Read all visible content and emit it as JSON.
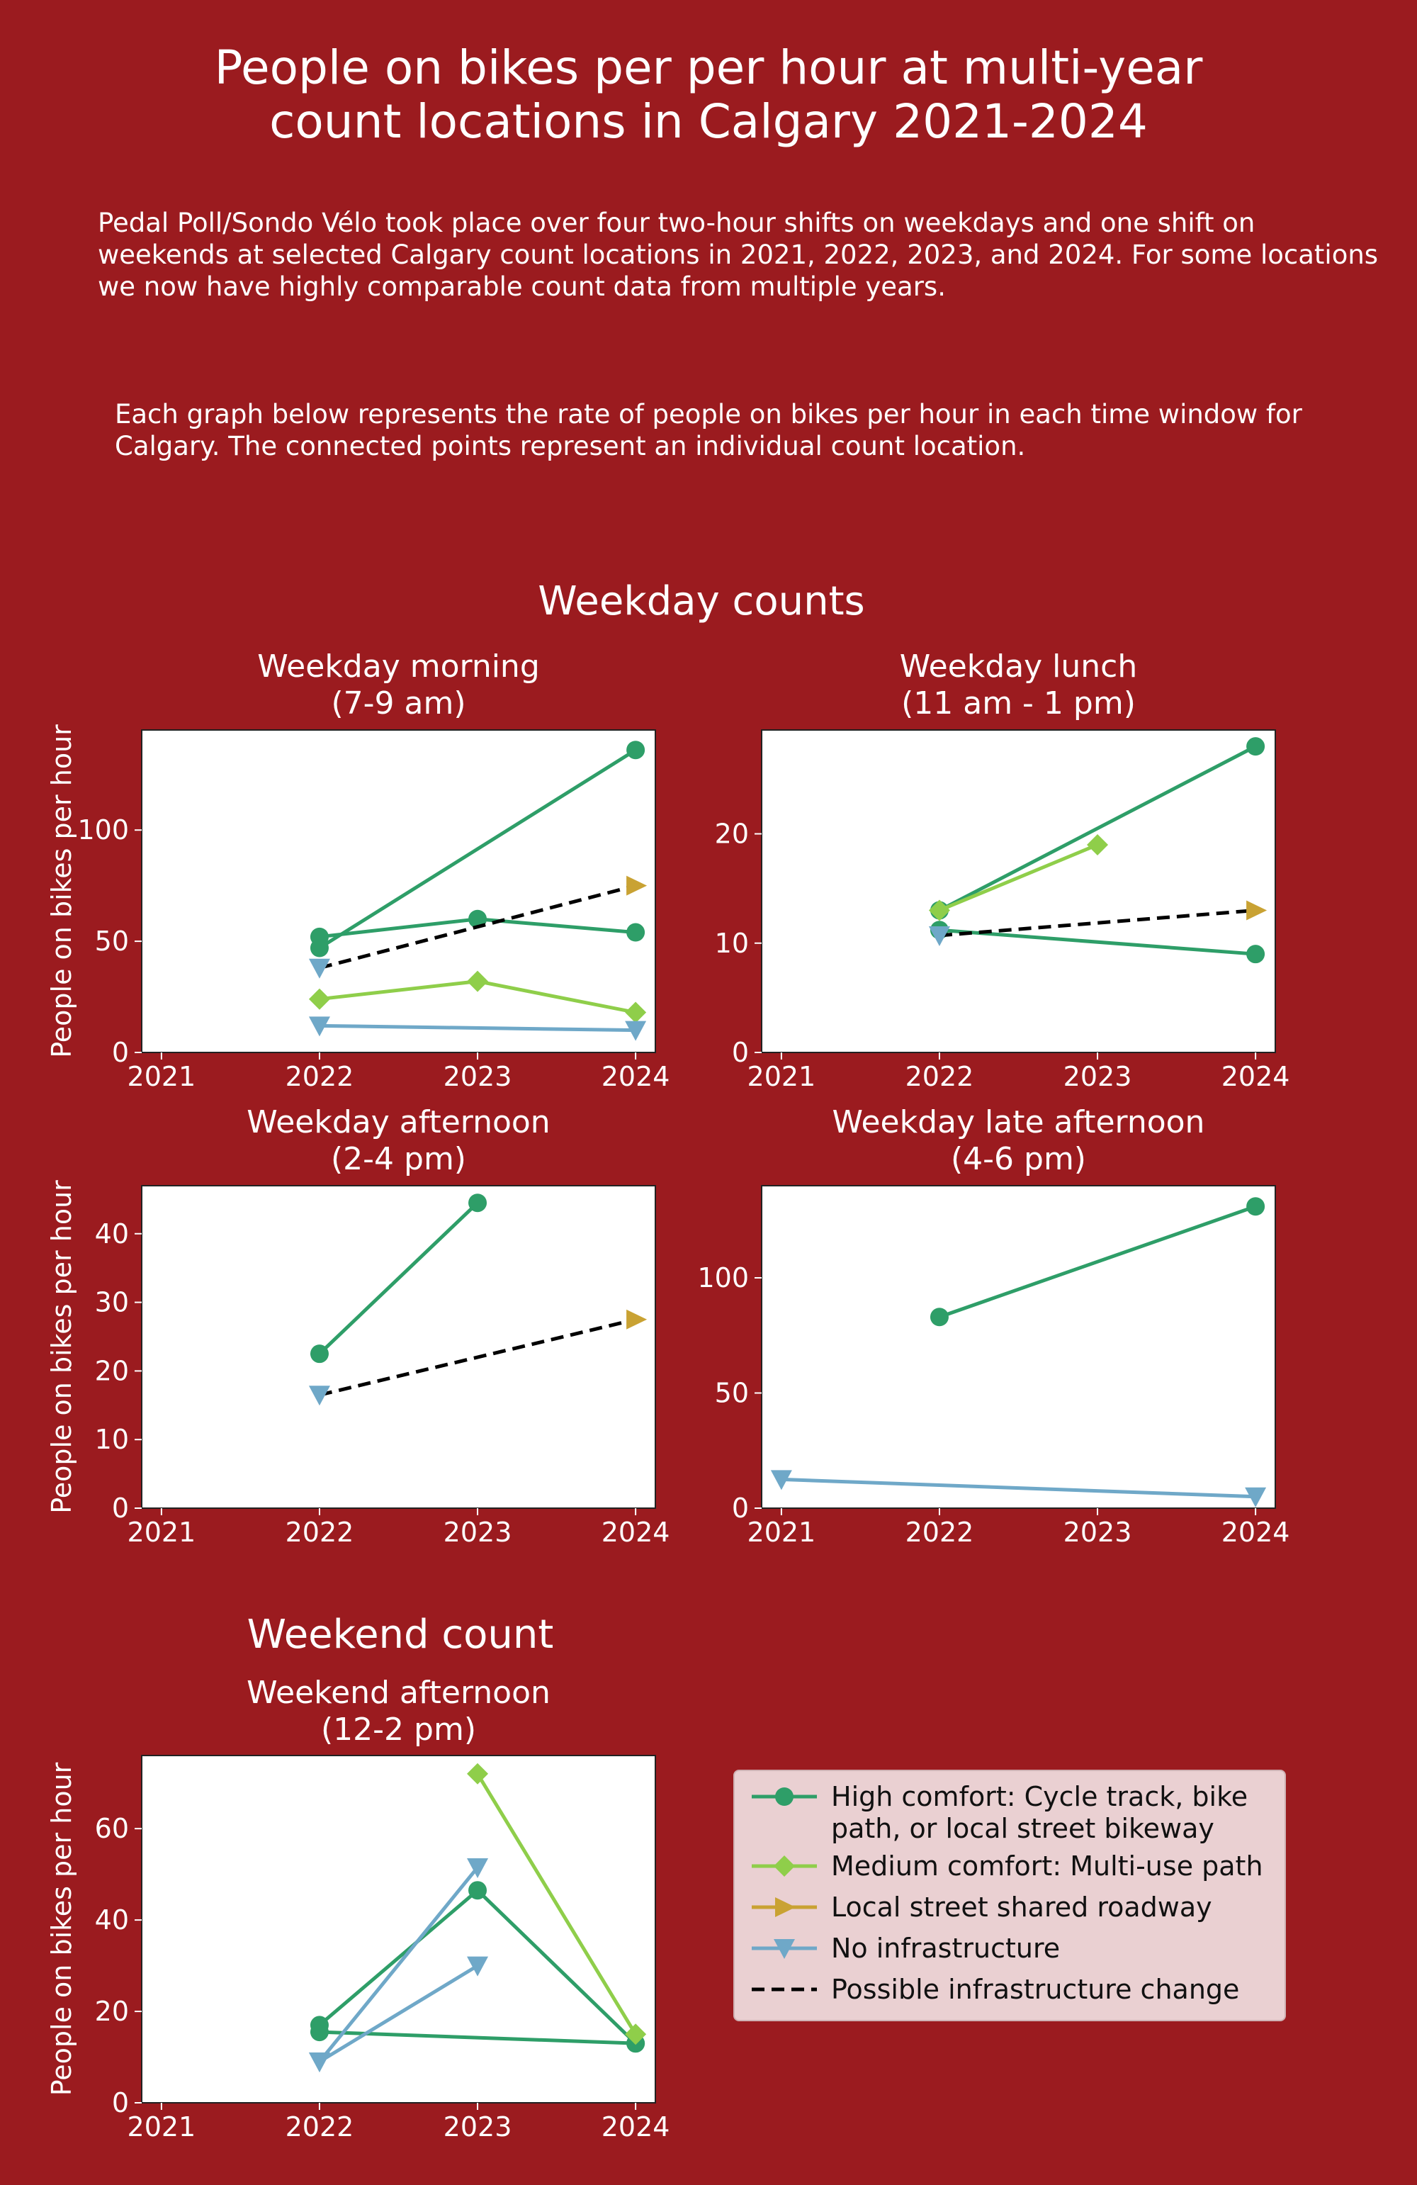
{
  "header": {
    "title": "People on bikes per per hour at multi-year\ncount locations in Calgary 2021-2024",
    "intro": "Pedal Poll/Sondo Vélo took place over four two-hour shifts on weekdays and one shift on weekends at selected Calgary count locations in 2021, 2022, 2023, and 2024. For some locations we now have highly comparable count data from multiple years.",
    "intro2": "Each graph below represents the rate of people on bikes per hour in each time window for Calgary. The connected points represent an individual count location."
  },
  "sections": {
    "weekday": "Weekday counts",
    "weekend": "Weekend count"
  },
  "colors": {
    "background": "#9b1b1f",
    "high": "#2e9e68",
    "medium": "#8fce4a",
    "local": "#c9a233",
    "none": "#6fa8c8",
    "change": "#000000"
  },
  "legend": {
    "items": [
      {
        "key": "high",
        "marker": "circle",
        "label": "High comfort: Cycle track, bike\npath, or local street bikeway"
      },
      {
        "key": "medium",
        "marker": "diamond",
        "label": "Medium comfort: Multi-use path"
      },
      {
        "key": "local",
        "marker": "triangle-right",
        "label": "Local street shared roadway"
      },
      {
        "key": "none",
        "marker": "triangle-down",
        "label": "No infrastructure"
      },
      {
        "key": "change",
        "marker": "dashed",
        "label": "Possible infrastructure change"
      }
    ]
  },
  "chart_data": [
    {
      "type": "line",
      "id": "morning",
      "title": "Weekday morning\n(7-9 am)",
      "ylabel": "People on bikes per hour",
      "xlabel": "",
      "categories": [
        "2021",
        "2022",
        "2023",
        "2024"
      ],
      "ylim": [
        0,
        145
      ],
      "yticks": [
        0,
        50,
        100
      ],
      "grid": false,
      "series": [
        {
          "key": "high",
          "x": [
            "2022",
            "2024"
          ],
          "y": [
            47,
            136
          ]
        },
        {
          "key": "high",
          "x": [
            "2022",
            "2023",
            "2024"
          ],
          "y": [
            52,
            60,
            54
          ]
        },
        {
          "key": "medium",
          "x": [
            "2022",
            "2023",
            "2024"
          ],
          "y": [
            24,
            32,
            18
          ]
        },
        {
          "key": "none",
          "x": [
            "2022",
            "2024"
          ],
          "y": [
            12,
            10
          ]
        },
        {
          "key": "change",
          "x": [
            "2022",
            "2024"
          ],
          "y": [
            38,
            75
          ],
          "start_marker": "none",
          "end_marker": "local"
        }
      ]
    },
    {
      "type": "line",
      "id": "lunch",
      "title": "Weekday lunch\n(11 am - 1 pm)",
      "ylabel": "",
      "xlabel": "",
      "categories": [
        "2021",
        "2022",
        "2023",
        "2024"
      ],
      "ylim": [
        0,
        29.5
      ],
      "yticks": [
        0,
        10,
        20
      ],
      "grid": false,
      "series": [
        {
          "key": "high",
          "x": [
            "2022",
            "2024"
          ],
          "y": [
            13,
            28
          ]
        },
        {
          "key": "high",
          "x": [
            "2022",
            "2024"
          ],
          "y": [
            11.2,
            9
          ]
        },
        {
          "key": "medium",
          "x": [
            "2022",
            "2023"
          ],
          "y": [
            13,
            19
          ]
        },
        {
          "key": "change",
          "x": [
            "2022",
            "2024"
          ],
          "y": [
            10.7,
            13
          ],
          "start_marker": "none",
          "end_marker": "local"
        }
      ]
    },
    {
      "type": "line",
      "id": "afternoon",
      "title": "Weekday afternoon\n(2-4 pm)",
      "ylabel": "People on bikes per hour",
      "xlabel": "",
      "categories": [
        "2021",
        "2022",
        "2023",
        "2024"
      ],
      "ylim": [
        0,
        47
      ],
      "yticks": [
        0,
        10,
        20,
        30,
        40
      ],
      "grid": false,
      "series": [
        {
          "key": "high",
          "x": [
            "2022",
            "2023"
          ],
          "y": [
            22.5,
            44.5
          ]
        },
        {
          "key": "change",
          "x": [
            "2022",
            "2024"
          ],
          "y": [
            16.5,
            27.5
          ],
          "start_marker": "none",
          "end_marker": "local"
        }
      ]
    },
    {
      "type": "line",
      "id": "late",
      "title": "Weekday late afternoon\n(4-6 pm)",
      "ylabel": "",
      "xlabel": "",
      "categories": [
        "2021",
        "2022",
        "2023",
        "2024"
      ],
      "ylim": [
        0,
        140
      ],
      "yticks": [
        0,
        50,
        100
      ],
      "grid": false,
      "series": [
        {
          "key": "high",
          "x": [
            "2022",
            "2024"
          ],
          "y": [
            83,
            131
          ]
        },
        {
          "key": "none",
          "x": [
            "2021",
            "2024"
          ],
          "y": [
            12.5,
            5
          ]
        }
      ]
    },
    {
      "type": "line",
      "id": "weekend",
      "title": "Weekend afternoon\n(12-2 pm)",
      "ylabel": "People on bikes per hour",
      "xlabel": "",
      "categories": [
        "2021",
        "2022",
        "2023",
        "2024"
      ],
      "ylim": [
        0,
        76
      ],
      "yticks": [
        0,
        20,
        40,
        60
      ],
      "grid": false,
      "series": [
        {
          "key": "high",
          "x": [
            "2022",
            "2023",
            "2024"
          ],
          "y": [
            17,
            46.5,
            13
          ]
        },
        {
          "key": "high",
          "x": [
            "2022",
            "2024"
          ],
          "y": [
            15.5,
            13
          ]
        },
        {
          "key": "medium",
          "x": [
            "2023",
            "2024"
          ],
          "y": [
            72,
            15
          ]
        },
        {
          "key": "none",
          "x": [
            "2022",
            "2023"
          ],
          "y": [
            9,
            51.5
          ]
        },
        {
          "key": "none",
          "x": [
            "2022",
            "2023"
          ],
          "y": [
            9,
            30
          ]
        }
      ]
    }
  ]
}
